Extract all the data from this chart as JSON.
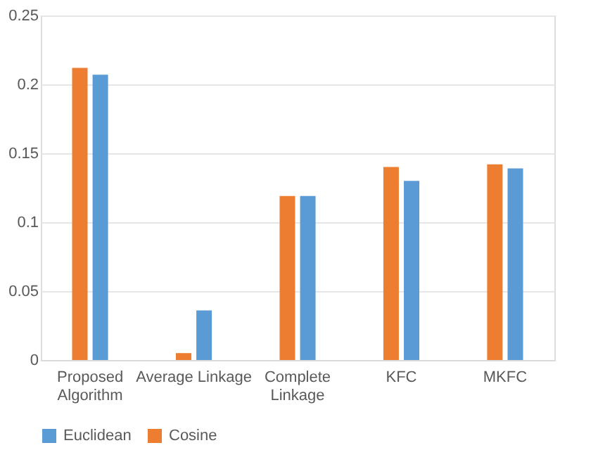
{
  "chart_data": {
    "type": "bar",
    "categories": [
      "Proposed Algorithm",
      "Average Linkage",
      "Complete Linkage",
      "KFC",
      "MKFC"
    ],
    "series": [
      {
        "name": "Euclidean",
        "color": "#5b9bd5",
        "values": [
          0.207,
          0.036,
          0.119,
          0.13,
          0.139
        ]
      },
      {
        "name": "Cosine",
        "color": "#ed7d31",
        "values": [
          0.212,
          0.005,
          0.119,
          0.14,
          0.142
        ]
      }
    ],
    "ylim": [
      0,
      0.25
    ],
    "yticks": [
      0,
      0.05,
      0.1,
      0.15,
      0.2,
      0.25
    ],
    "grid": "y",
    "legend": "bottom"
  }
}
